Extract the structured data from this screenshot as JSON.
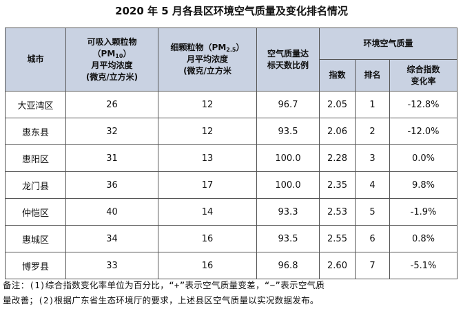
{
  "title": "2020 年 5 月各县区环境空气质量及变化排名情况",
  "headers": {
    "city": "城市",
    "pm10": {
      "line1": "可吸入颗粒物",
      "line2_pre": "（PM",
      "line2_sub": "10",
      "line2_post": "）",
      "line3": "月平均浓度",
      "line4": "(微克/立方米)"
    },
    "pm25": {
      "line1_pre": "细颗粒物（PM",
      "line1_sub": "2.5",
      "line1_post": "）",
      "line2": "月平均浓度",
      "line3": "(微克/立方米"
    },
    "ratio": {
      "line1": "空气质量达",
      "line2": "标天数比例"
    },
    "aq_group": "环境空气质量",
    "index": "指数",
    "rank": "排名",
    "change": {
      "line1": "综合指数",
      "line2": "变化率"
    }
  },
  "rows": [
    {
      "city": "大亚湾区",
      "pm10": "26",
      "pm25": "12",
      "ratio": "96.7",
      "index": "2.05",
      "rank": "1",
      "change": "-12.8%"
    },
    {
      "city": "惠东县",
      "pm10": "32",
      "pm25": "12",
      "ratio": "93.5",
      "index": "2.06",
      "rank": "2",
      "change": "-12.0%"
    },
    {
      "city": "惠阳区",
      "pm10": "31",
      "pm25": "13",
      "ratio": "100.0",
      "index": "2.28",
      "rank": "3",
      "change": "0.0%"
    },
    {
      "city": "龙门县",
      "pm10": "36",
      "pm25": "17",
      "ratio": "100.0",
      "index": "2.35",
      "rank": "4",
      "change": "9.8%"
    },
    {
      "city": "仲恺区",
      "pm10": "40",
      "pm25": "14",
      "ratio": "93.3",
      "index": "2.53",
      "rank": "5",
      "change": "-1.9%"
    },
    {
      "city": "惠城区",
      "pm10": "34",
      "pm25": "16",
      "ratio": "93.5",
      "index": "2.55",
      "rank": "6",
      "change": "0.8%"
    },
    {
      "city": "博罗县",
      "pm10": "33",
      "pm25": "16",
      "ratio": "96.8",
      "index": "2.60",
      "rank": "7",
      "change": "-5.1%"
    }
  ],
  "note": {
    "line1": "备注：(1)综合指数变化率单位为百分比，“+”表示空气质量变差，“−”表示空气质",
    "line2": "量改善；(2)根据广东省生态环境厅的要求，上述县区空气质量以实况数据发布。"
  }
}
